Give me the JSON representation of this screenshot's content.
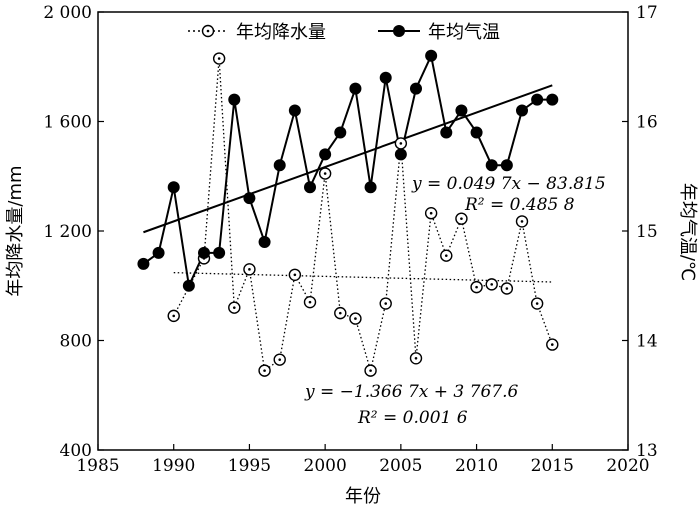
{
  "chart_data": {
    "type": "line",
    "xlabel": "年份",
    "ylabel_left": "年均降水量/mm",
    "ylabel_right": "年均气温/℃",
    "xlim": [
      1985,
      2020
    ],
    "ylim_left": [
      400,
      2000
    ],
    "ylim_right": [
      13,
      17
    ],
    "x_ticks": [
      1985,
      1990,
      1995,
      2000,
      2005,
      2010,
      2015,
      2020
    ],
    "x_tick_labels": [
      "1985",
      "1990",
      "1995",
      "2000",
      "2005",
      "2010",
      "2015",
      "2020"
    ],
    "y_left_ticks": [
      400,
      800,
      1200,
      1600,
      2000
    ],
    "y_left_tick_labels": [
      "400",
      "800",
      "1 200",
      "1 600",
      "2 000"
    ],
    "y_right_ticks": [
      13,
      14,
      15,
      16,
      17
    ],
    "y_right_tick_labels": [
      "13",
      "14",
      "15",
      "16",
      "17"
    ],
    "legend_position": "top",
    "series": [
      {
        "name": "年均降水量",
        "axis": "left",
        "style": "dotted-open-circle",
        "x": [
          1990,
          1992,
          1993,
          1994,
          1995,
          1996,
          1997,
          1998,
          1999,
          2000,
          2001,
          2002,
          2003,
          2004,
          2005,
          2006,
          2007,
          2008,
          2009,
          2010,
          2011,
          2012,
          2013,
          2014,
          2015
        ],
        "values": [
          890,
          1100,
          1830,
          920,
          1060,
          690,
          730,
          1040,
          940,
          1410,
          900,
          880,
          690,
          935,
          1520,
          735,
          1265,
          1110,
          1245,
          995,
          1005,
          990,
          1235,
          935,
          785
        ]
      },
      {
        "name": "年均气温",
        "axis": "right",
        "style": "solid-filled-circle",
        "x": [
          1988,
          1989,
          1990,
          1991,
          1992,
          1993,
          1994,
          1995,
          1996,
          1997,
          1998,
          1999,
          2000,
          2001,
          2002,
          2003,
          2004,
          2005,
          2006,
          2007,
          2008,
          2009,
          2010,
          2011,
          2012,
          2013,
          2014,
          2015
        ],
        "values": [
          14.7,
          14.8,
          15.4,
          14.5,
          14.8,
          14.8,
          16.2,
          15.3,
          14.9,
          15.6,
          16.1,
          15.4,
          15.7,
          15.9,
          16.3,
          15.4,
          16.4,
          15.7,
          16.3,
          16.6,
          15.9,
          16.1,
          15.9,
          15.6,
          15.6,
          16.1,
          16.2,
          16.2
        ]
      }
    ],
    "trendlines": [
      {
        "series": "年均气温",
        "axis": "right",
        "style": "solid",
        "x_range": [
          1988,
          2015
        ],
        "slope": 0.0497,
        "intercept": -83.815,
        "equation": "y = 0.049 7x − 83.815",
        "r2": "R² = 0.485 8"
      },
      {
        "series": "年均降水量",
        "axis": "left",
        "style": "dotted",
        "x_range": [
          1990,
          2015
        ],
        "slope": -1.3667,
        "intercept": 3767.6,
        "equation": "y = −1.366 7x + 3 767.6",
        "r2": "R² = 0.001 6"
      }
    ]
  }
}
